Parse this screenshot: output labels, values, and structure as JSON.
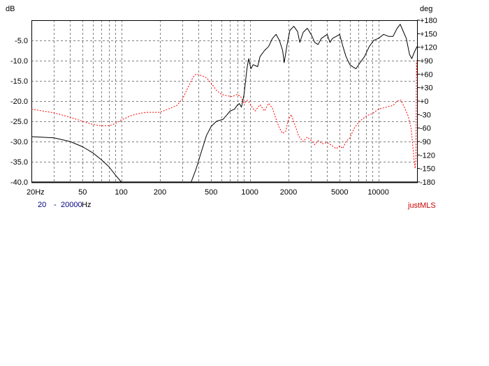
{
  "chart_data": {
    "type": "line",
    "ylabel": "dB",
    "y2label": "deg",
    "xscale": "log",
    "xlim": [
      20,
      20000
    ],
    "ylim": [
      -40,
      0
    ],
    "y2lim": [
      -180,
      180
    ],
    "grid": true,
    "x_ticks": [
      {
        "v": 20,
        "label": "20Hz"
      },
      {
        "v": 50,
        "label": "50"
      },
      {
        "v": 100,
        "label": "100"
      },
      {
        "v": 200,
        "label": "200"
      },
      {
        "v": 500,
        "label": "500"
      },
      {
        "v": 1000,
        "label": "1000"
      },
      {
        "v": 2000,
        "label": "2000"
      },
      {
        "v": 5000,
        "label": "5000"
      },
      {
        "v": 10000,
        "label": "10000"
      }
    ],
    "y_ticks": [
      {
        "v": -5,
        "label": "-5.0"
      },
      {
        "v": -10,
        "label": "-10.0"
      },
      {
        "v": -15,
        "label": "-15.0"
      },
      {
        "v": -20,
        "label": "-20.0"
      },
      {
        "v": -25,
        "label": "-25.0"
      },
      {
        "v": -30,
        "label": "-30.0"
      },
      {
        "v": -35,
        "label": "-35.0"
      },
      {
        "v": -40,
        "label": "-40.0"
      }
    ],
    "y2_ticks": [
      {
        "v": 180,
        "label": "+180"
      },
      {
        "v": 150,
        "label": "+150"
      },
      {
        "v": 120,
        "label": "+120"
      },
      {
        "v": 90,
        "label": "+90"
      },
      {
        "v": 60,
        "label": "+60"
      },
      {
        "v": 30,
        "label": "+30"
      },
      {
        "v": 0,
        "label": "+0"
      },
      {
        "v": -30,
        "label": "-30"
      },
      {
        "v": -60,
        "label": "-60"
      },
      {
        "v": -90,
        "label": "-90"
      },
      {
        "v": -120,
        "label": "-120"
      },
      {
        "v": -150,
        "label": "-150"
      },
      {
        "v": -180,
        "label": "-180"
      }
    ],
    "series": [
      {
        "axis": "left",
        "color": "#000000",
        "style": "solid",
        "segments": [
          [
            [
              20,
              -28.8
            ],
            [
              30,
              -29.1
            ],
            [
              40,
              -30.0
            ],
            [
              50,
              -31.3
            ],
            [
              60,
              -32.8
            ],
            [
              70,
              -34.5
            ],
            [
              80,
              -36.2
            ],
            [
              90,
              -38.3
            ],
            [
              100,
              -40.0
            ]
          ],
          [
            [
              350,
              -40.0
            ],
            [
              380,
              -37.0
            ],
            [
              420,
              -32.5
            ],
            [
              460,
              -28.5
            ],
            [
              500,
              -26.3
            ],
            [
              550,
              -25.0
            ],
            [
              620,
              -24.5
            ],
            [
              660,
              -23.5
            ],
            [
              700,
              -22.5
            ],
            [
              760,
              -22.0
            ],
            [
              800,
              -21.0
            ],
            [
              830,
              -20.6
            ],
            [
              860,
              -21.5
            ],
            [
              900,
              -18.5
            ],
            [
              920,
              -16.0
            ],
            [
              950,
              -12.0
            ],
            [
              980,
              -9.5
            ],
            [
              1020,
              -12.0
            ],
            [
              1060,
              -11.0
            ],
            [
              1100,
              -11.2
            ],
            [
              1150,
              -11.5
            ],
            [
              1200,
              -9.0
            ],
            [
              1300,
              -7.5
            ],
            [
              1400,
              -6.5
            ],
            [
              1500,
              -4.5
            ],
            [
              1600,
              -3.5
            ],
            [
              1700,
              -5.0
            ],
            [
              1800,
              -7.5
            ],
            [
              1850,
              -10.5
            ],
            [
              1950,
              -6.0
            ],
            [
              2050,
              -2.5
            ],
            [
              2200,
              -1.5
            ],
            [
              2350,
              -2.8
            ],
            [
              2450,
              -5.5
            ],
            [
              2600,
              -3.0
            ],
            [
              2800,
              -2.0
            ],
            [
              3000,
              -3.5
            ],
            [
              3200,
              -5.5
            ],
            [
              3400,
              -6.0
            ],
            [
              3600,
              -4.5
            ],
            [
              3800,
              -4.0
            ],
            [
              4000,
              -3.5
            ],
            [
              4200,
              -5.5
            ],
            [
              4400,
              -4.5
            ],
            [
              4700,
              -4.0
            ],
            [
              5000,
              -3.5
            ],
            [
              5300,
              -6.5
            ],
            [
              5600,
              -9.0
            ],
            [
              6000,
              -11.0
            ],
            [
              6300,
              -11.5
            ],
            [
              6700,
              -12.0
            ],
            [
              7200,
              -10.5
            ],
            [
              7800,
              -9.0
            ],
            [
              8500,
              -6.5
            ],
            [
              9200,
              -5.0
            ],
            [
              10000,
              -4.5
            ],
            [
              11000,
              -3.5
            ],
            [
              12000,
              -4.0
            ],
            [
              13000,
              -4.0
            ],
            [
              14000,
              -2.0
            ],
            [
              14800,
              -1.0
            ],
            [
              15500,
              -2.5
            ],
            [
              16500,
              -4.5
            ],
            [
              17500,
              -8.5
            ],
            [
              18200,
              -9.5
            ],
            [
              19000,
              -8.0
            ],
            [
              20000,
              -6.5
            ]
          ]
        ]
      },
      {
        "axis": "right",
        "color": "#ff0000",
        "style": "dashed",
        "segments": [
          [
            [
              20,
              -18
            ],
            [
              30,
              -26
            ],
            [
              40,
              -36
            ],
            [
              50,
              -45
            ],
            [
              60,
              -52
            ],
            [
              70,
              -55
            ],
            [
              80,
              -55
            ],
            [
              90,
              -50
            ],
            [
              100,
              -42
            ],
            [
              120,
              -32
            ],
            [
              140,
              -27
            ],
            [
              160,
              -25
            ],
            [
              200,
              -25
            ],
            [
              230,
              -18
            ],
            [
              270,
              -10
            ],
            [
              300,
              5
            ],
            [
              330,
              30
            ],
            [
              360,
              52
            ],
            [
              380,
              60
            ],
            [
              420,
              57
            ],
            [
              460,
              52
            ],
            [
              500,
              40
            ],
            [
              550,
              24
            ],
            [
              600,
              15
            ],
            [
              660,
              12
            ],
            [
              730,
              10
            ],
            [
              800,
              15
            ],
            [
              850,
              10
            ],
            [
              900,
              -5
            ],
            [
              960,
              2
            ],
            [
              1000,
              -5
            ],
            [
              1050,
              -15
            ],
            [
              1100,
              -22
            ],
            [
              1200,
              -8
            ],
            [
              1300,
              -22
            ],
            [
              1400,
              -5
            ],
            [
              1500,
              -16
            ],
            [
              1600,
              -40
            ],
            [
              1700,
              -60
            ],
            [
              1800,
              -72
            ],
            [
              1900,
              -68
            ],
            [
              2000,
              -40
            ],
            [
              2100,
              -30
            ],
            [
              2200,
              -46
            ],
            [
              2400,
              -78
            ],
            [
              2600,
              -90
            ],
            [
              2800,
              -80
            ],
            [
              3000,
              -88
            ],
            [
              3200,
              -97
            ],
            [
              3400,
              -88
            ],
            [
              3700,
              -95
            ],
            [
              4000,
              -92
            ],
            [
              4300,
              -98
            ],
            [
              4700,
              -106
            ],
            [
              5000,
              -100
            ],
            [
              5300,
              -105
            ],
            [
              5600,
              -90
            ],
            [
              6000,
              -82
            ],
            [
              6500,
              -60
            ],
            [
              7000,
              -48
            ],
            [
              7500,
              -40
            ],
            [
              8200,
              -32
            ],
            [
              9000,
              -28
            ],
            [
              10000,
              -18
            ],
            [
              11000,
              -15
            ],
            [
              12000,
              -12
            ],
            [
              13000,
              -10
            ],
            [
              14000,
              0
            ],
            [
              15000,
              2
            ],
            [
              16000,
              -15
            ],
            [
              17000,
              -32
            ],
            [
              18000,
              -60
            ],
            [
              18800,
              -120
            ],
            [
              19300,
              -150
            ],
            [
              19600,
              -130
            ],
            [
              19800,
              90
            ],
            [
              20000,
              55
            ]
          ]
        ]
      }
    ]
  },
  "footer": {
    "range_start": "20",
    "range_sep": "-",
    "range_end": "20000",
    "range_unit": "Hz",
    "brand": "justMLS"
  }
}
